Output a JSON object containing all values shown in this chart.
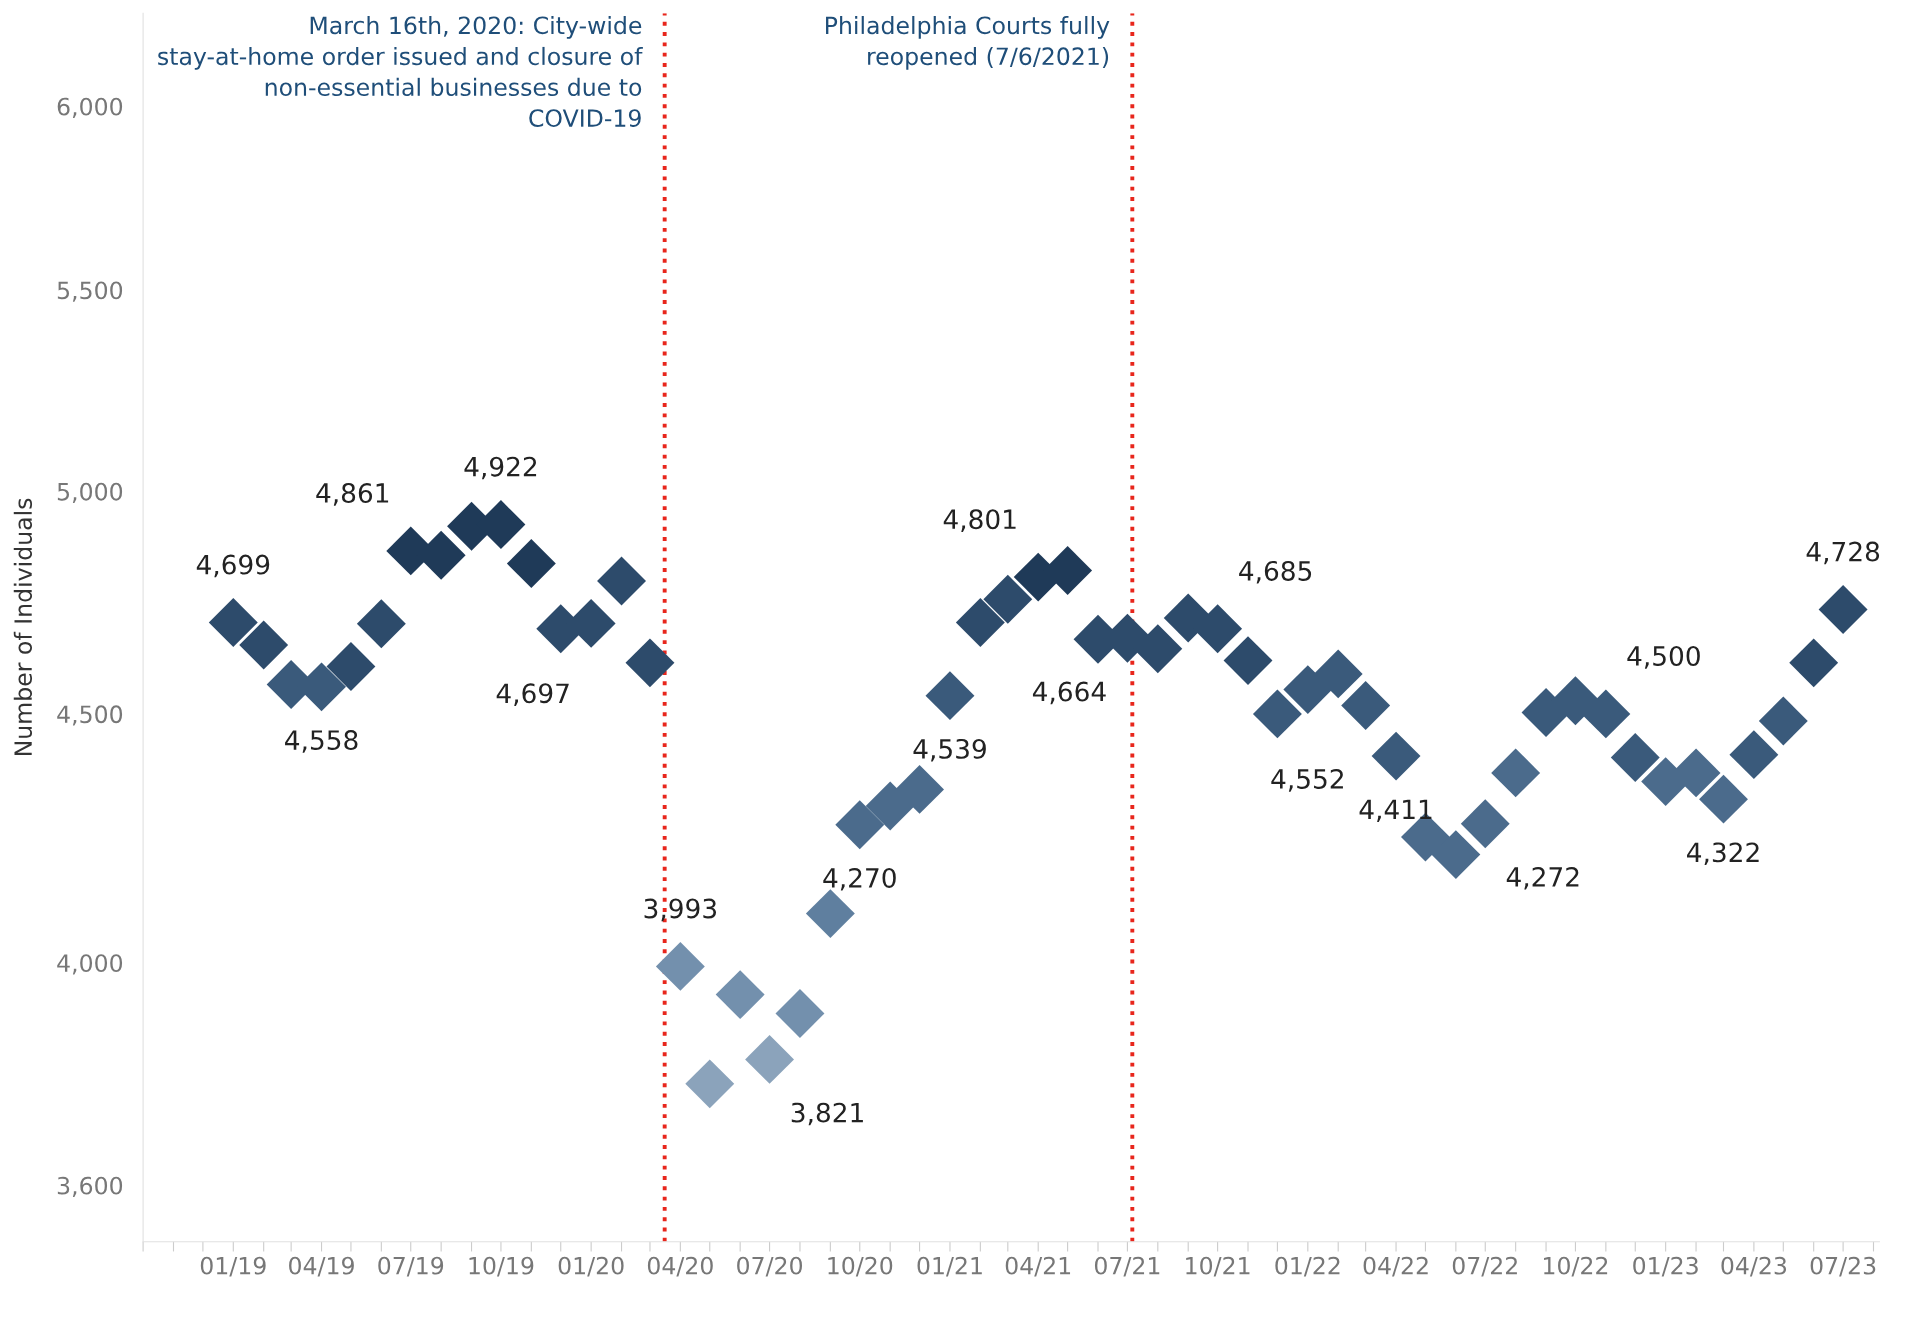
{
  "chart_data": {
    "type": "scatter",
    "ylabel": "Number of Individuals",
    "x": [
      "2019-01",
      "2019-02",
      "2019-03",
      "2019-04",
      "2019-05",
      "2019-06",
      "2019-07",
      "2019-08",
      "2019-09",
      "2019-10",
      "2019-11",
      "2019-12",
      "2020-01",
      "2020-02",
      "2020-03",
      "2020-04",
      "2020-05",
      "2020-06",
      "2020-07",
      "2020-08",
      "2020-09",
      "2020-10",
      "2020-11",
      "2020-12",
      "2021-01",
      "2021-02",
      "2021-03",
      "2021-04",
      "2021-05",
      "2021-06",
      "2021-07",
      "2021-08",
      "2021-09",
      "2021-10",
      "2021-11",
      "2021-12",
      "2022-01",
      "2022-02",
      "2022-03",
      "2022-04",
      "2022-05",
      "2022-06",
      "2022-07",
      "2022-08",
      "2022-09",
      "2022-10",
      "2022-11",
      "2022-12",
      "2023-01",
      "2023-02",
      "2023-03",
      "2023-04",
      "2023-05",
      "2023-06",
      "2023-07"
    ],
    "values": [
      4699,
      4649,
      4563,
      4558,
      4602,
      4696,
      4861,
      4851,
      4918,
      4922,
      4832,
      4685,
      4697,
      4792,
      4610,
      3993,
      3777,
      3940,
      3821,
      3905,
      4094,
      4270,
      4308,
      4342,
      4539,
      4699,
      4751,
      4801,
      4816,
      4662,
      4664,
      4641,
      4709,
      4685,
      4615,
      4500,
      4552,
      4586,
      4518,
      4411,
      4245,
      4210,
      4272,
      4376,
      4503,
      4528,
      4500,
      4408,
      4358,
      4376,
      4322,
      4414,
      4485,
      4610,
      4728
    ],
    "value_labels": [
      "4,699",
      null,
      null,
      "4,558",
      null,
      null,
      "4,861",
      null,
      null,
      "4,922",
      null,
      null,
      "4,697",
      null,
      null,
      "3,993",
      null,
      null,
      "3,821",
      null,
      null,
      "4,270",
      null,
      null,
      "4,539",
      null,
      null,
      "4,801",
      null,
      null,
      "4,664",
      null,
      null,
      "4,685",
      null,
      null,
      "4,552",
      null,
      null,
      "4,411",
      null,
      null,
      "4,272",
      null,
      null,
      null,
      "4,500",
      null,
      null,
      null,
      "4,322",
      null,
      null,
      null,
      "4,728"
    ],
    "colors": [
      "#2d4b6b",
      "#2d4b6b",
      "#3a5a7b",
      "#3a5a7b",
      "#2d4b6b",
      "#2d4b6b",
      "#1f3a58",
      "#1f3a58",
      "#1f3a58",
      "#1f3a58",
      "#1f3a58",
      "#2d4b6b",
      "#2d4b6b",
      "#2d4b6b",
      "#2d4b6b",
      "#7390ad",
      "#8ba3bb",
      "#7390ad",
      "#8ba3bb",
      "#7390ad",
      "#5f7f9f",
      "#4b6b8c",
      "#4b6b8c",
      "#4b6b8c",
      "#3a5a7b",
      "#2d4b6b",
      "#2d4b6b",
      "#1f3a58",
      "#1f3a58",
      "#2d4b6b",
      "#2d4b6b",
      "#2d4b6b",
      "#2d4b6b",
      "#2d4b6b",
      "#2d4b6b",
      "#3a5a7b",
      "#3a5a7b",
      "#3a5a7b",
      "#3a5a7b",
      "#3a5a7b",
      "#4b6b8c",
      "#4b6b8c",
      "#4b6b8c",
      "#4b6b8c",
      "#3a5a7b",
      "#3a5a7b",
      "#3a5a7b",
      "#3a5a7b",
      "#4b6b8c",
      "#4b6b8c",
      "#4b6b8c",
      "#3a5a7b",
      "#3a5a7b",
      "#2d4b6b",
      "#2d4b6b"
    ],
    "marker": "diamond",
    "log": "y",
    "grid": false,
    "ylim": [
      3505,
      6270
    ],
    "yticks": [
      {
        "value": 3600,
        "label": "3,600"
      },
      {
        "value": 4000,
        "label": "4,000"
      },
      {
        "value": 4500,
        "label": "4,500"
      },
      {
        "value": 5000,
        "label": "5,000"
      },
      {
        "value": 5500,
        "label": "5,500"
      },
      {
        "value": 6000,
        "label": "6,000"
      }
    ],
    "xlim": [
      "2018-10",
      "2023-08-07"
    ],
    "xticks": [
      {
        "value": "2018-10",
        "label": null
      },
      {
        "value": "2018-11",
        "label": null
      },
      {
        "value": "2018-12",
        "label": null
      },
      {
        "value": "2019-01",
        "label": "01/19"
      },
      {
        "value": "2019-02",
        "label": null
      },
      {
        "value": "2019-03",
        "label": null
      },
      {
        "value": "2019-04",
        "label": "04/19"
      },
      {
        "value": "2019-05",
        "label": null
      },
      {
        "value": "2019-06",
        "label": null
      },
      {
        "value": "2019-07",
        "label": "07/19"
      },
      {
        "value": "2019-08",
        "label": null
      },
      {
        "value": "2019-09",
        "label": null
      },
      {
        "value": "2019-10",
        "label": "10/19"
      },
      {
        "value": "2019-11",
        "label": null
      },
      {
        "value": "2019-12",
        "label": null
      },
      {
        "value": "2020-01",
        "label": "01/20"
      },
      {
        "value": "2020-02",
        "label": null
      },
      {
        "value": "2020-03",
        "label": null
      },
      {
        "value": "2020-04",
        "label": "04/20"
      },
      {
        "value": "2020-05",
        "label": null
      },
      {
        "value": "2020-06",
        "label": null
      },
      {
        "value": "2020-07",
        "label": "07/20"
      },
      {
        "value": "2020-08",
        "label": null
      },
      {
        "value": "2020-09",
        "label": null
      },
      {
        "value": "2020-10",
        "label": "10/20"
      },
      {
        "value": "2020-11",
        "label": null
      },
      {
        "value": "2020-12",
        "label": null
      },
      {
        "value": "2021-01",
        "label": "01/21"
      },
      {
        "value": "2021-02",
        "label": null
      },
      {
        "value": "2021-03",
        "label": null
      },
      {
        "value": "2021-04",
        "label": "04/21"
      },
      {
        "value": "2021-05",
        "label": null
      },
      {
        "value": "2021-06",
        "label": null
      },
      {
        "value": "2021-07",
        "label": "07/21"
      },
      {
        "value": "2021-08",
        "label": null
      },
      {
        "value": "2021-09",
        "label": null
      },
      {
        "value": "2021-10",
        "label": "10/21"
      },
      {
        "value": "2021-11",
        "label": null
      },
      {
        "value": "2021-12",
        "label": null
      },
      {
        "value": "2022-01",
        "label": "01/22"
      },
      {
        "value": "2022-02",
        "label": null
      },
      {
        "value": "2022-03",
        "label": null
      },
      {
        "value": "2022-04",
        "label": "04/22"
      },
      {
        "value": "2022-05",
        "label": null
      },
      {
        "value": "2022-06",
        "label": null
      },
      {
        "value": "2022-07",
        "label": "07/22"
      },
      {
        "value": "2022-08",
        "label": null
      },
      {
        "value": "2022-09",
        "label": null
      },
      {
        "value": "2022-10",
        "label": "10/22"
      },
      {
        "value": "2022-11",
        "label": null
      },
      {
        "value": "2022-12",
        "label": null
      },
      {
        "value": "2023-01",
        "label": "01/23"
      },
      {
        "value": "2023-02",
        "label": null
      },
      {
        "value": "2023-03",
        "label": null
      },
      {
        "value": "2023-04",
        "label": "04/23"
      },
      {
        "value": "2023-05",
        "label": null
      },
      {
        "value": "2023-06",
        "label": null
      },
      {
        "value": "2023-07",
        "label": "07/23"
      },
      {
        "value": "2023-08",
        "label": null
      }
    ],
    "ref_lines": [
      {
        "axis": "x",
        "value": "2020-03-16",
        "label": "March 16th, 2020: City-wide\nstay-at-home order issued and closure of\nnon-essential businesses due to\nCOVID-19",
        "color": "#e8261c",
        "line_style": "dotted"
      },
      {
        "axis": "x",
        "value": "2021-07-06",
        "label": "Philadelphia Courts fully\nreopened (7/6/2021)",
        "color": "#e8261c",
        "line_style": "dotted"
      }
    ]
  }
}
